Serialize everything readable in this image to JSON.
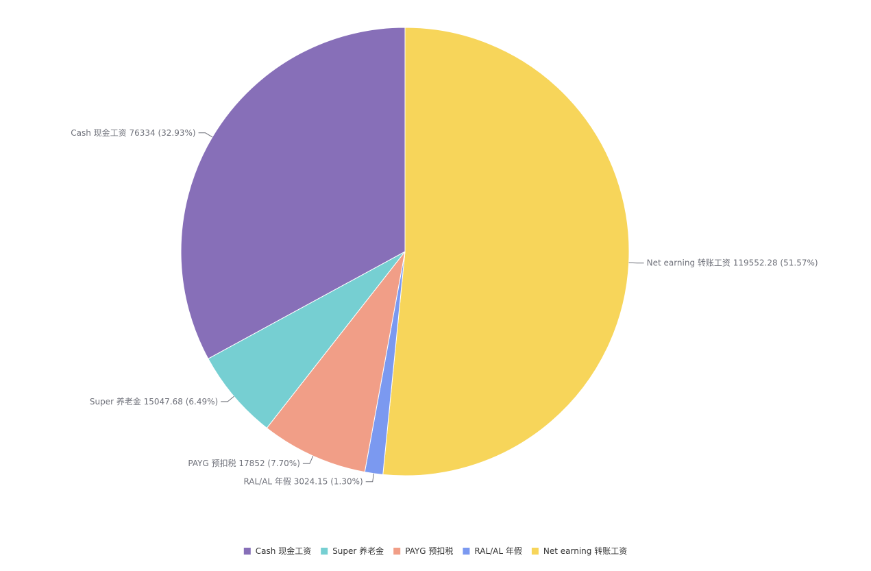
{
  "chart_data": {
    "type": "pie",
    "start_angle": "12 o'clock",
    "direction": "clockwise",
    "legend_position": "bottom-center",
    "slices": [
      {
        "name": "Net earning 转账工资",
        "value": 119552.28,
        "percent": "51.57%",
        "label": "Net earning 转账工资 119552.28 (51.57%)",
        "color": "#f7d55a"
      },
      {
        "name": "RAL/AL 年假",
        "value": 3024.15,
        "percent": "1.30%",
        "label": "RAL/AL 年假 3024.15 (1.30%)",
        "color": "#7b99f0"
      },
      {
        "name": "PAYG 预扣税",
        "value": 17852,
        "percent": "7.70%",
        "label": "PAYG 预扣税 17852 (7.70%)",
        "color": "#f19e87"
      },
      {
        "name": "Super 养老金",
        "value": 15047.68,
        "percent": "6.49%",
        "label": "Super 养老金 15047.68 (6.49%)",
        "color": "#76cfd2"
      },
      {
        "name": "Cash 现金工资",
        "value": 76334,
        "percent": "32.93%",
        "label": "Cash 现金工资 76334 (32.93%)",
        "color": "#876fb8"
      }
    ],
    "legend": [
      {
        "name": "Cash 现金工资",
        "color": "#876fb8"
      },
      {
        "name": "Super 养老金",
        "color": "#76cfd2"
      },
      {
        "name": "PAYG 预扣税",
        "color": "#f19e87"
      },
      {
        "name": "RAL/AL 年假",
        "color": "#7b99f0"
      },
      {
        "name": "Net earning 转账工资",
        "color": "#f7d55a"
      }
    ]
  }
}
